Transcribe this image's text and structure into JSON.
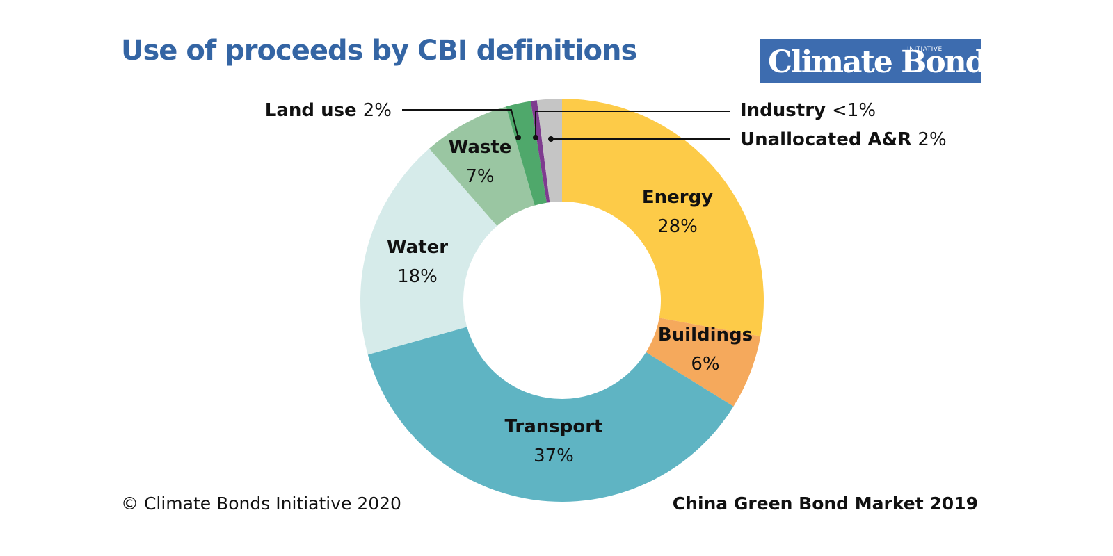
{
  "title": "Use of proceeds by CBI definitions",
  "logo": {
    "text": "Climate Bonds",
    "small": "INITIATIVE",
    "color": "#3d6caf"
  },
  "footer": {
    "copyright": "© Climate Bonds Initiative 2020",
    "source": "China Green Bond Market 2019"
  },
  "chart_data": {
    "type": "pie",
    "donut": true,
    "title": "Use of proceeds by CBI definitions",
    "categories": [
      "Energy",
      "Buildings",
      "Transport",
      "Water",
      "Waste",
      "Land use",
      "Industry",
      "Unallocated A&R"
    ],
    "values": [
      28,
      6,
      37,
      18,
      7,
      2,
      0.5,
      2
    ],
    "value_labels": [
      "28%",
      "6%",
      "37%",
      "18%",
      "7%",
      "2%",
      "<1%",
      "2%"
    ],
    "colors": [
      "#fdcb48",
      "#f5a95c",
      "#5fb4c3",
      "#d6ebea",
      "#9ac6a2",
      "#4fa86b",
      "#7e3b8f",
      "#c5c5c5"
    ],
    "start": "12 o'clock, clockwise order: Energy, Buildings, Transport, Water, Waste, Land use, Industry, Unallocated A&R",
    "inside_labels": [
      "Energy",
      "Buildings",
      "Transport",
      "Water",
      "Waste"
    ],
    "callout_labels": [
      "Land use",
      "Industry",
      "Unallocated A&R"
    ]
  }
}
